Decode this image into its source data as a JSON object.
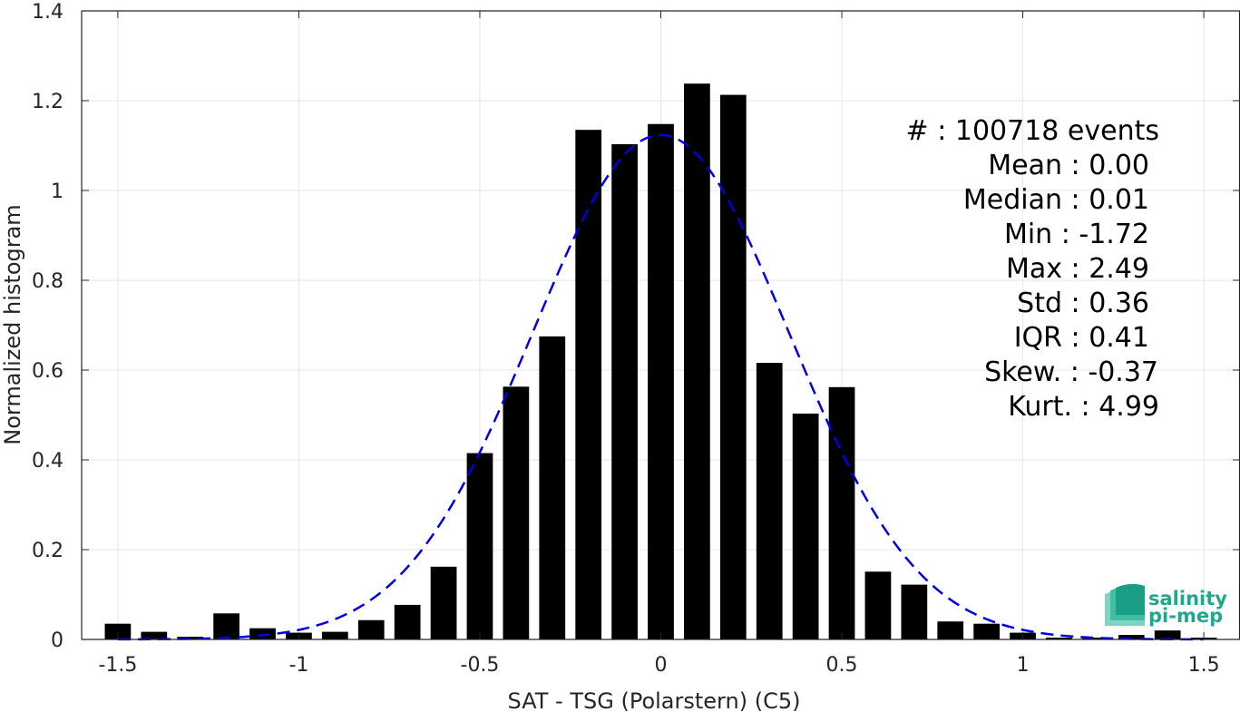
{
  "chart_data": {
    "type": "bar",
    "xlabel": "SAT - TSG (Polarstern) (C5)",
    "ylabel": "Normalized histogram",
    "xlim": [
      -1.6,
      1.6
    ],
    "ylim": [
      0,
      1.4
    ],
    "xticks": [
      -1.5,
      -1,
      -0.5,
      0,
      0.5,
      1,
      1.5
    ],
    "xtick_labels": [
      "-1.5",
      "-1",
      "-0.5",
      "0",
      "0.5",
      "1",
      "1.5"
    ],
    "yticks": [
      0,
      0.2,
      0.4,
      0.6,
      0.8,
      1,
      1.2,
      1.4
    ],
    "ytick_labels": [
      "0",
      "0.2",
      "0.4",
      "0.6",
      "0.8",
      "1",
      "1.2",
      "1.4"
    ],
    "grid": true,
    "bar_color": "#000000",
    "curve_color": "#0000e6",
    "bin_width": 0.1,
    "x": [
      -1.5,
      -1.4,
      -1.3,
      -1.2,
      -1.1,
      -1.0,
      -0.9,
      -0.8,
      -0.7,
      -0.6,
      -0.5,
      -0.4,
      -0.3,
      -0.2,
      -0.1,
      0.0,
      0.1,
      0.2,
      0.3,
      0.4,
      0.5,
      0.6,
      0.7,
      0.8,
      0.9,
      1.0,
      1.1,
      1.2,
      1.3,
      1.4,
      1.5
    ],
    "values": [
      0.035,
      0.017,
      0.006,
      0.058,
      0.025,
      0.015,
      0.017,
      0.043,
      0.077,
      0.162,
      0.415,
      0.563,
      0.675,
      1.135,
      1.103,
      1.148,
      1.238,
      1.213,
      0.616,
      0.503,
      0.562,
      0.151,
      0.122,
      0.04,
      0.035,
      0.015,
      0.004,
      0.004,
      0.01,
      0.02,
      0.004
    ],
    "fit_curve": {
      "type": "normal",
      "mean": 0.0,
      "std": 0.355,
      "line_style": "dashed"
    },
    "statistics": [
      "#  : 100718 events",
      "Mean : 0.00",
      "Median : 0.01",
      "Min : -1.72",
      "Max : 2.49",
      "Std : 0.36",
      "IQR : 0.41",
      "Skew. : -0.37",
      "Kurt. : 4.99"
    ]
  },
  "logo": {
    "line1": "salinity",
    "line2": "pi-mep",
    "color": "#1fa98c"
  }
}
